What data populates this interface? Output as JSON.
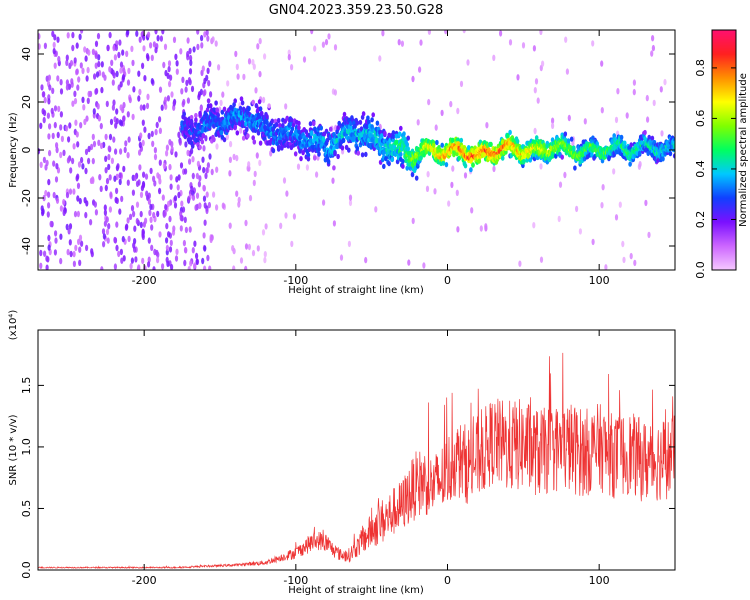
{
  "title": "GN04.2023.359.23.50.G28",
  "colors": {
    "snr_line": "#ee3333",
    "spectrogram_low": "#7a10ff",
    "spectrogram_high": "#ff1040"
  },
  "chart_data": [
    {
      "type": "heatmap",
      "title": "GN04.2023.359.23.50.G28",
      "xlabel": "Height of straight line (km)",
      "ylabel": "Frequency (Hz)",
      "xlim": [
        -270,
        150
      ],
      "ylim": [
        -50,
        50
      ],
      "x_ticks": [
        -200,
        -100,
        0,
        100
      ],
      "y_ticks": [
        -40,
        -20,
        0,
        20,
        40
      ],
      "x_tick_labels": [
        "-200",
        "-100",
        "0",
        "100"
      ],
      "y_tick_labels": [
        "-40",
        "-20",
        "0",
        "20",
        "40"
      ],
      "colorbar": {
        "label": "Normalized spectral amplitude",
        "range": [
          0,
          0.95
        ],
        "ticks": [
          0.0,
          0.2,
          0.4,
          0.6,
          0.8
        ],
        "tick_labels": [
          "0.0",
          "0.2",
          "0.4",
          "0.6",
          "0.8"
        ],
        "colormap": "rainbow"
      },
      "ridge": {
        "x": [
          -170,
          -150,
          -130,
          -120,
          -100,
          -80,
          -60,
          -40,
          -25,
          -10,
          0,
          10,
          20,
          30,
          40,
          50,
          60,
          70,
          80,
          90,
          100,
          110,
          120,
          130,
          140,
          150
        ],
        "frequency": [
          8,
          12,
          14,
          8,
          6,
          2,
          8,
          2,
          -2,
          0,
          -1,
          0,
          -3,
          0,
          1,
          0,
          -1,
          2,
          0,
          -1,
          0,
          1,
          0,
          1,
          1,
          0
        ],
        "amplitude": [
          0.3,
          0.35,
          0.35,
          0.35,
          0.35,
          0.4,
          0.4,
          0.45,
          0.55,
          0.75,
          0.8,
          0.85,
          0.9,
          0.85,
          0.8,
          0.75,
          0.7,
          0.65,
          0.6,
          0.55,
          0.55,
          0.5,
          0.5,
          0.45,
          0.45,
          0.4
        ]
      }
    },
    {
      "type": "line",
      "xlabel": "Height of straight line (km)",
      "ylabel": "SNR (10 * v/v)",
      "y_scale_label": "(x10⁴)",
      "xlim": [
        -270,
        150
      ],
      "ylim": [
        0,
        1.95
      ],
      "x_ticks": [
        -200,
        -100,
        0,
        100
      ],
      "y_ticks": [
        0.0,
        0.5,
        1.0,
        1.5
      ],
      "x_tick_labels": [
        "-200",
        "-100",
        "0",
        "100"
      ],
      "y_tick_labels": [
        "0.0",
        "0.5",
        "1.0",
        "1.5"
      ],
      "series": [
        {
          "x": [
            -270,
            -250,
            -220,
            -200,
            -180,
            -160,
            -140,
            -120,
            -110,
            -100,
            -95,
            -90,
            -85,
            -80,
            -75,
            -70,
            -65,
            -60,
            -55,
            -50,
            -45,
            -40,
            -35,
            -30,
            -25,
            -20,
            -15,
            -10,
            -5,
            0,
            5,
            10,
            15,
            20,
            25,
            30,
            40,
            50,
            60,
            70,
            80,
            90,
            100,
            110,
            120,
            130,
            140,
            150
          ],
          "y": [
            0.02,
            0.02,
            0.02,
            0.02,
            0.02,
            0.03,
            0.04,
            0.06,
            0.1,
            0.14,
            0.18,
            0.22,
            0.24,
            0.22,
            0.16,
            0.12,
            0.12,
            0.18,
            0.25,
            0.32,
            0.38,
            0.42,
            0.48,
            0.52,
            0.62,
            0.7,
            0.72,
            0.68,
            0.72,
            0.8,
            0.9,
            0.88,
            0.85,
            0.92,
            0.98,
            1.05,
            1.0,
            1.02,
            0.95,
            0.98,
            1.0,
            0.95,
            1.0,
            0.92,
            0.95,
            0.88,
            0.9,
            0.92
          ],
          "noise": [
            0.005,
            0.005,
            0.005,
            0.005,
            0.006,
            0.008,
            0.01,
            0.02,
            0.03,
            0.05,
            0.06,
            0.08,
            0.08,
            0.08,
            0.06,
            0.05,
            0.06,
            0.08,
            0.12,
            0.15,
            0.18,
            0.2,
            0.2,
            0.22,
            0.25,
            0.28,
            0.28,
            0.25,
            0.28,
            0.3,
            0.32,
            0.32,
            0.33,
            0.34,
            0.35,
            0.36,
            0.38,
            0.38,
            0.36,
            0.36,
            0.38,
            0.36,
            0.36,
            0.34,
            0.34,
            0.34,
            0.34,
            0.34
          ]
        }
      ]
    }
  ]
}
